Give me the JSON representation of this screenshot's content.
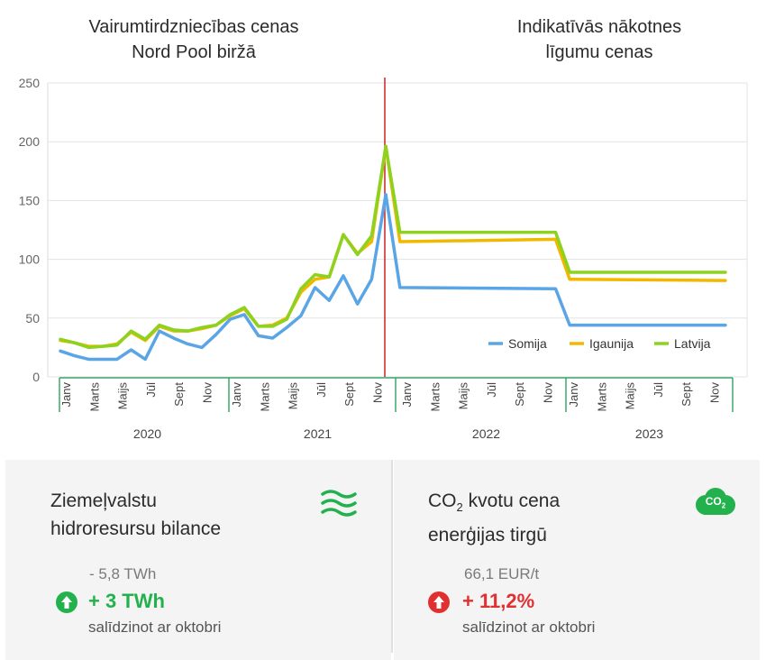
{
  "titles": {
    "left_line1": "Vairumtirdzniecības cenas",
    "left_line2": "Nord Pool biržā",
    "right_line1": "Indikatīvās nākotnes",
    "right_line2": "līgumu cenas"
  },
  "chart_data": {
    "type": "line",
    "yticks": [
      0,
      50,
      100,
      150,
      200,
      250
    ],
    "ylim": [
      0,
      250
    ],
    "month_labels": [
      "Janv",
      "Marts",
      "Maijs",
      "Jūl",
      "Sept",
      "Nov"
    ],
    "years": [
      "2020",
      "2021",
      "2022",
      "2023"
    ],
    "historical_x": [
      "2020-01",
      "2020-02",
      "2020-03",
      "2020-04",
      "2020-05",
      "2020-06",
      "2020-07",
      "2020-08",
      "2020-09",
      "2020-10",
      "2020-11",
      "2020-12",
      "2021-01",
      "2021-02",
      "2021-03",
      "2021-04",
      "2021-05",
      "2021-06",
      "2021-07",
      "2021-08",
      "2021-09",
      "2021-10",
      "2021-11",
      "2021-12"
    ],
    "forecast_x": [
      "2022-01",
      "2022-12",
      "2023-01",
      "2023-12"
    ],
    "series": [
      {
        "name": "Somija",
        "color": "#5aa5e6",
        "historical": [
          22,
          18,
          15,
          15,
          15,
          23,
          15,
          39,
          33,
          28,
          25,
          36,
          49,
          53,
          35,
          33,
          42,
          52,
          76,
          65,
          86,
          62,
          83,
          155
        ],
        "forecast": [
          76,
          75,
          44,
          44
        ]
      },
      {
        "name": "Igaunija",
        "color": "#f2b800",
        "historical": [
          31,
          29,
          26,
          26,
          28,
          38,
          31,
          43,
          39,
          39,
          41,
          44,
          52,
          58,
          43,
          44,
          50,
          72,
          83,
          85,
          121,
          105,
          115,
          196
        ],
        "forecast": [
          115,
          117,
          83,
          82
        ]
      },
      {
        "name": "Latvija",
        "color": "#8cd21e",
        "historical": [
          32,
          29,
          25,
          26,
          27,
          39,
          32,
          44,
          40,
          39,
          42,
          44,
          53,
          59,
          43,
          43,
          49,
          75,
          87,
          85,
          121,
          104,
          120,
          196
        ],
        "forecast": [
          123,
          123,
          89,
          89
        ]
      }
    ],
    "legend_position": "bottom-right",
    "grid": true,
    "divider_color": "#cc2222"
  },
  "cards": {
    "hydro": {
      "title_line1": "Ziemeļvalstu",
      "title_line2": "hidroresursu bilance",
      "icon": "water-waves-icon",
      "previous": "- 5,8 TWh",
      "change": "+ 3 TWh",
      "change_color": "#22b14c",
      "compare": "salīdzinot ar oktobri"
    },
    "co2": {
      "title_pre": "CO",
      "title_sub": "2",
      "title_post": " kvotu cena",
      "title_line2": "enerģijas tirgū",
      "icon": "co2-cloud-icon",
      "icon_text": "CO",
      "icon_sub": "2",
      "previous": "66,1 EUR/t",
      "change": "+ 11,2%",
      "change_color": "#e03030",
      "compare": "salīdzinot ar oktobri"
    }
  }
}
